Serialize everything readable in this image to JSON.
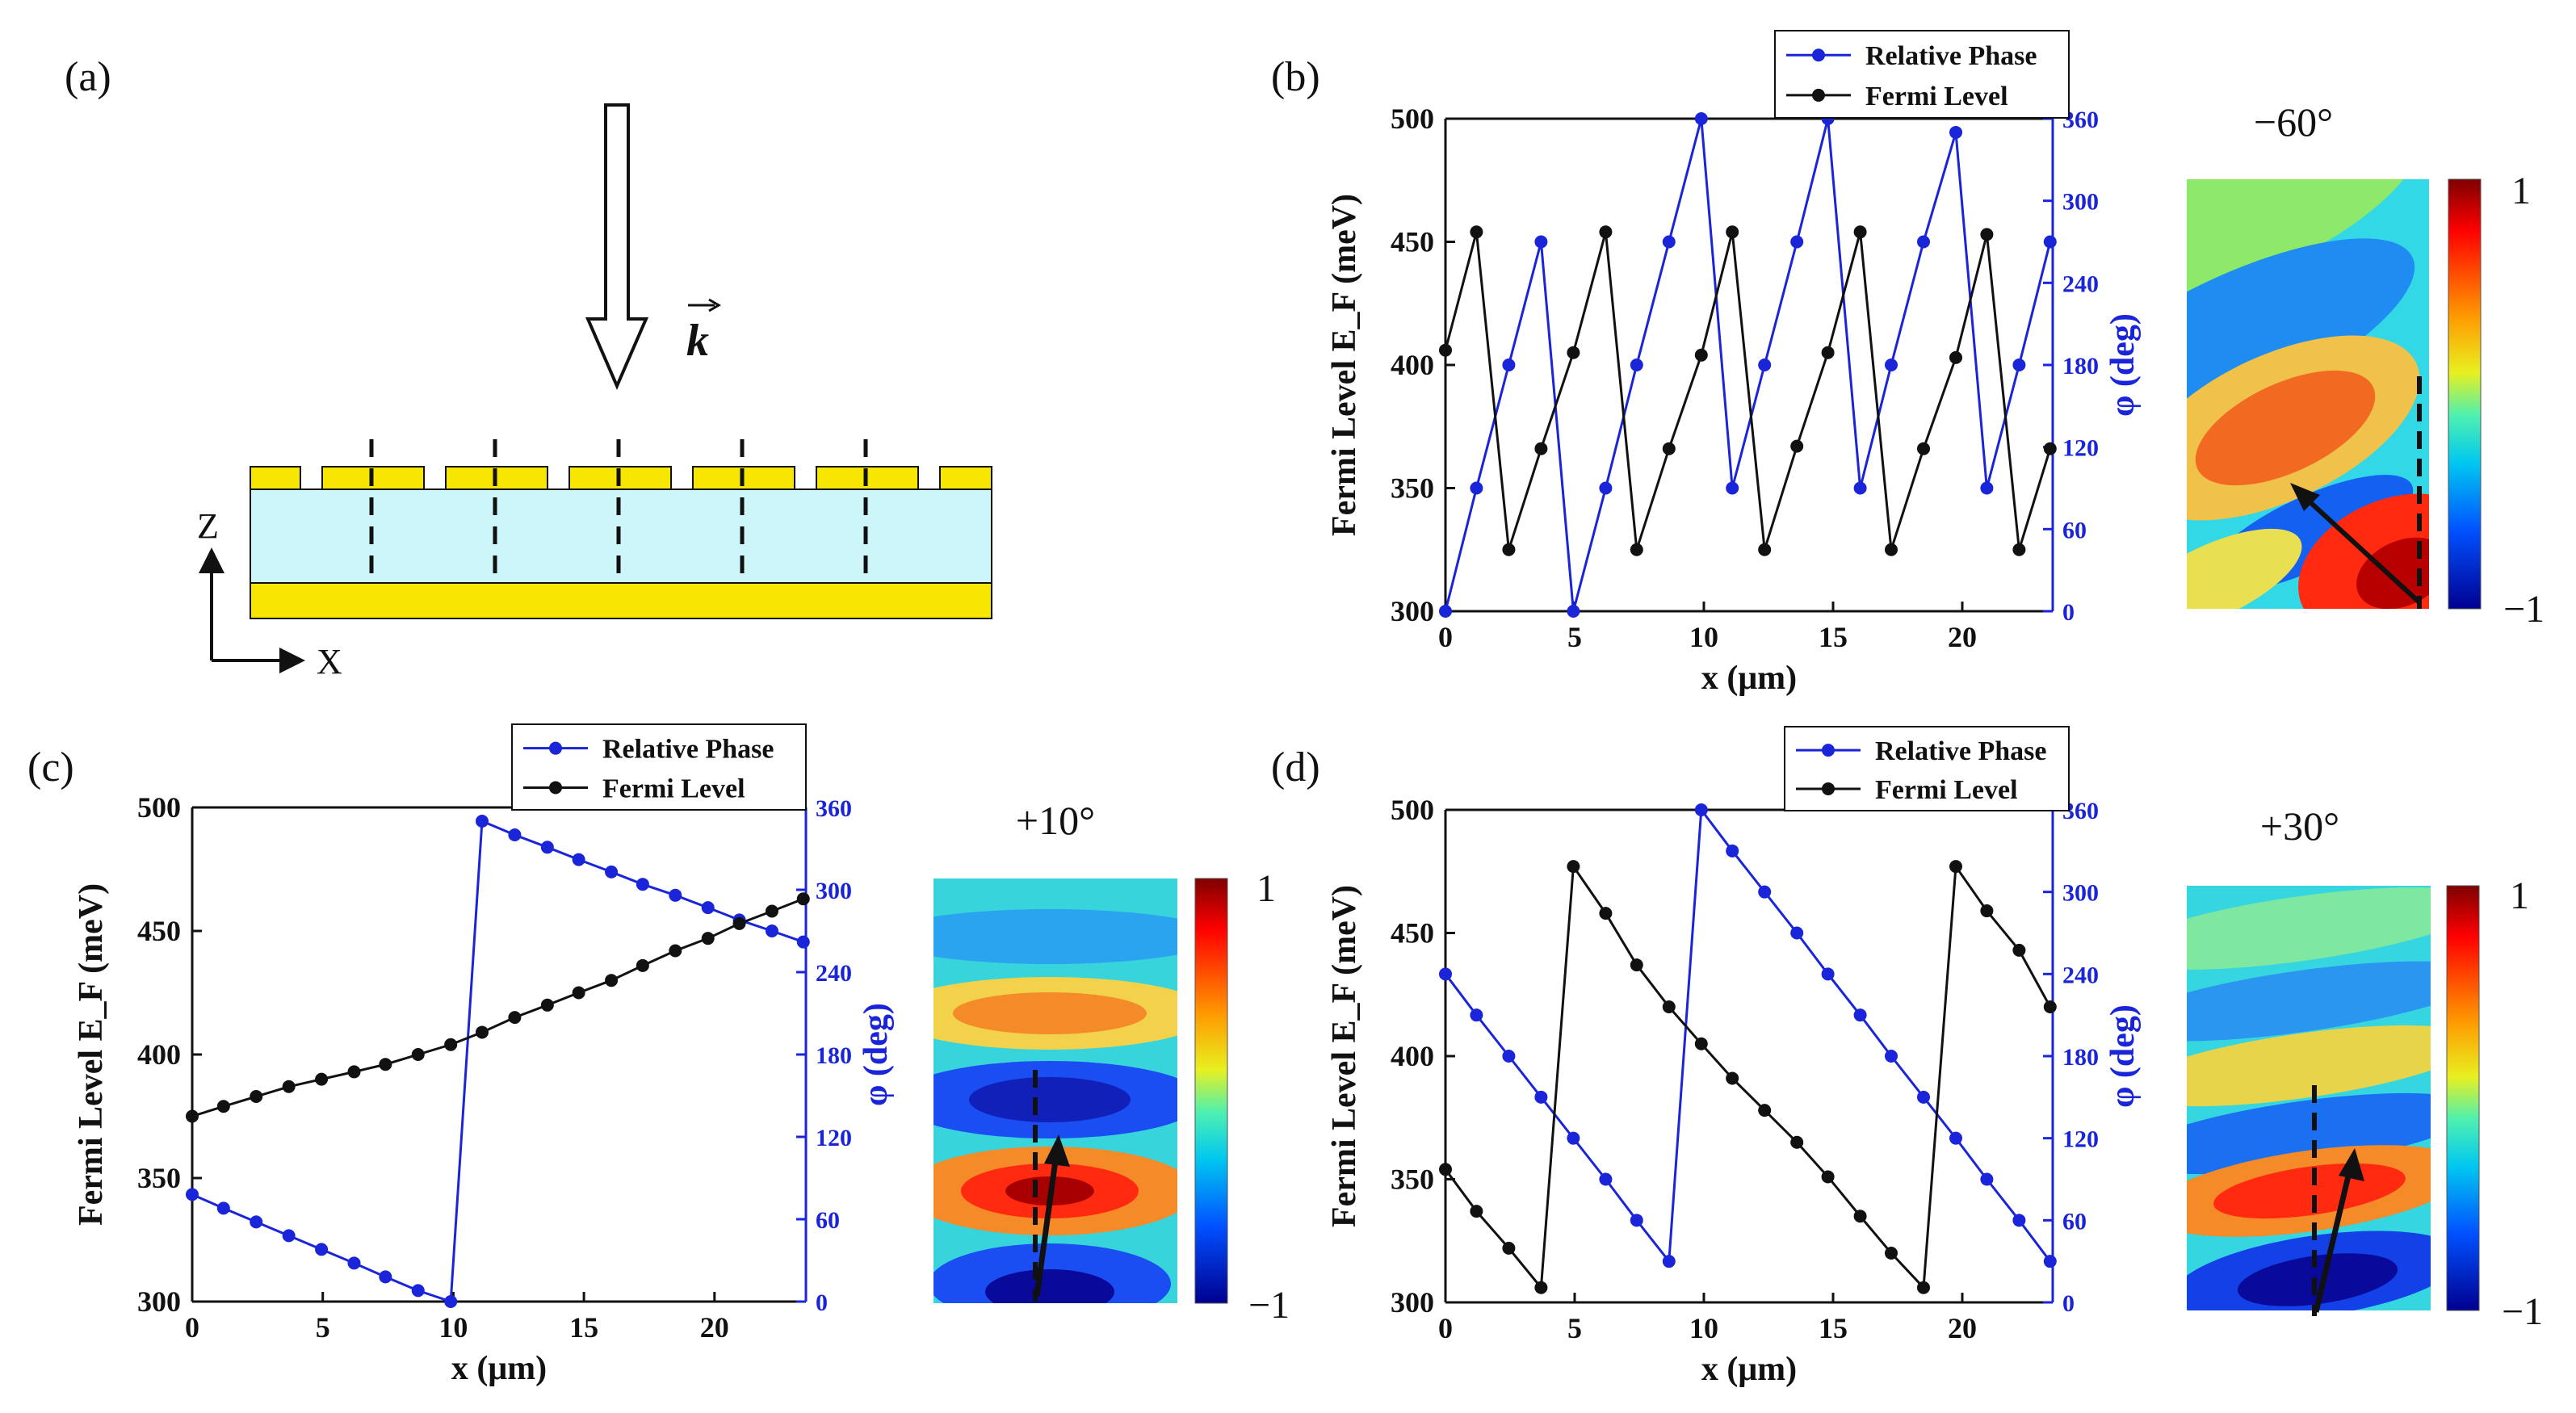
{
  "figure": {
    "panel_labels": [
      "(a)",
      "(b)",
      "(c)",
      "(d)"
    ],
    "schematic": {
      "wave_vector_label": "k",
      "axis_z": "Z",
      "axis_x": "X",
      "colors": {
        "metal": "#f7e600",
        "dielectric": "#cdf6fb"
      }
    }
  },
  "chart_data": [
    {
      "panel": "(b)",
      "type": "line",
      "xlabel": "x (μm)",
      "ylabel_left": "Fermi Level E_F (meV)",
      "ylabel_right": "φ (deg)",
      "xlim": [
        0,
        23.5
      ],
      "ylim_left": [
        300,
        500
      ],
      "ylim_right": [
        0,
        360
      ],
      "xticks": [
        "0",
        "5",
        "10",
        "15",
        "20"
      ],
      "yticks_left": [
        "300",
        "350",
        "400",
        "450",
        "500"
      ],
      "yticks_right": [
        "0",
        "60",
        "120",
        "180",
        "240",
        "300",
        "360"
      ],
      "legend": [
        "Relative Phase",
        "Fermi Level"
      ],
      "series": [
        {
          "name": "Relative Phase",
          "axis": "right",
          "color": "#1a24d8",
          "x": [
            0,
            1.2,
            2.45,
            3.7,
            4.95,
            6.2,
            7.4,
            8.65,
            9.9,
            11.1,
            12.35,
            13.6,
            14.8,
            16.05,
            17.25,
            18.5,
            19.75,
            20.95,
            22.2,
            23.4
          ],
          "y": [
            0,
            90,
            180,
            270,
            0,
            90,
            180,
            270,
            360,
            90,
            180,
            270,
            360,
            90,
            180,
            270,
            350,
            90,
            180,
            270
          ]
        },
        {
          "name": "Fermi Level",
          "axis": "left",
          "color": "#111111",
          "x": [
            0,
            1.2,
            2.45,
            3.7,
            4.95,
            6.2,
            7.4,
            8.65,
            9.9,
            11.1,
            12.35,
            13.6,
            14.8,
            16.05,
            17.25,
            18.5,
            19.75,
            20.95,
            22.2,
            23.4
          ],
          "y": [
            406,
            454,
            325,
            366,
            405,
            454,
            325,
            366,
            404,
            454,
            325,
            367,
            405,
            454,
            325,
            366,
            403,
            453,
            325,
            366
          ]
        }
      ],
      "field_map": {
        "angle_label": "−60°",
        "colorbar_ticks": [
          "1",
          "−1"
        ]
      }
    },
    {
      "panel": "(c)",
      "type": "line",
      "xlabel": "x (μm)",
      "ylabel_left": "Fermi Level E_F (meV)",
      "ylabel_right": "φ (deg)",
      "xlim": [
        0,
        23.5
      ],
      "ylim_left": [
        300,
        500
      ],
      "ylim_right": [
        0,
        360
      ],
      "xticks": [
        "0",
        "5",
        "10",
        "15",
        "20"
      ],
      "yticks_left": [
        "300",
        "350",
        "400",
        "450",
        "500"
      ],
      "yticks_right": [
        "0",
        "60",
        "120",
        "180",
        "240",
        "300",
        "360"
      ],
      "legend": [
        "Relative Phase",
        "Fermi Level"
      ],
      "series": [
        {
          "name": "Relative Phase",
          "axis": "right",
          "color": "#1a24d8",
          "x": [
            0,
            1.2,
            2.45,
            3.7,
            4.95,
            6.2,
            7.4,
            8.65,
            9.9,
            11.1,
            12.35,
            13.6,
            14.8,
            16.05,
            17.25,
            18.5,
            19.75,
            20.95,
            22.2,
            23.4
          ],
          "y": [
            78,
            68,
            58,
            48,
            38,
            28,
            18,
            8,
            0,
            350,
            340,
            331,
            322,
            313,
            304,
            296,
            287,
            278,
            270,
            262
          ]
        },
        {
          "name": "Fermi Level",
          "axis": "left",
          "color": "#111111",
          "x": [
            0,
            1.2,
            2.45,
            3.7,
            4.95,
            6.2,
            7.4,
            8.65,
            9.9,
            11.1,
            12.35,
            13.6,
            14.8,
            16.05,
            17.25,
            18.5,
            19.75,
            20.95,
            22.2,
            23.4
          ],
          "y": [
            375,
            379,
            383,
            387,
            390,
            393,
            396,
            400,
            404,
            409,
            415,
            420,
            425,
            430,
            436,
            442,
            447,
            453,
            458,
            463
          ]
        }
      ],
      "field_map": {
        "angle_label": "+10°",
        "colorbar_ticks": [
          "1",
          "−1"
        ]
      }
    },
    {
      "panel": "(d)",
      "type": "line",
      "xlabel": "x (μm)",
      "ylabel_left": "Fermi Level E_F (meV)",
      "ylabel_right": "φ (deg)",
      "xlim": [
        0,
        23.5
      ],
      "ylim_left": [
        300,
        500
      ],
      "ylim_right": [
        0,
        360
      ],
      "xticks": [
        "0",
        "5",
        "10",
        "15",
        "20"
      ],
      "yticks_left": [
        "300",
        "350",
        "400",
        "450",
        "500"
      ],
      "yticks_right": [
        "0",
        "60",
        "120",
        "180",
        "240",
        "300",
        "360"
      ],
      "legend": [
        "Relative Phase",
        "Fermi Level"
      ],
      "series": [
        {
          "name": "Relative Phase",
          "axis": "right",
          "color": "#1a24d8",
          "x": [
            0,
            1.2,
            2.45,
            3.7,
            4.95,
            6.2,
            7.4,
            8.65,
            9.9,
            11.1,
            12.35,
            13.6,
            14.8,
            16.05,
            17.25,
            18.5,
            19.75,
            20.95,
            22.2,
            23.4
          ],
          "y": [
            240,
            210,
            180,
            150,
            120,
            90,
            60,
            30,
            360,
            330,
            300,
            270,
            240,
            210,
            180,
            150,
            120,
            90,
            60,
            30
          ]
        },
        {
          "name": "Fermi Level",
          "axis": "left",
          "color": "#111111",
          "x": [
            0,
            1.2,
            2.45,
            3.7,
            4.95,
            6.2,
            7.4,
            8.65,
            9.9,
            11.1,
            12.35,
            13.6,
            14.8,
            16.05,
            17.25,
            18.5,
            19.75,
            20.95,
            22.2,
            23.4
          ],
          "y": [
            354,
            337,
            322,
            306,
            477,
            458,
            437,
            420,
            405,
            391,
            378,
            365,
            351,
            335,
            320,
            306,
            477,
            459,
            443,
            420
          ]
        }
      ],
      "field_map": {
        "angle_label": "+30°",
        "colorbar_ticks": [
          "1",
          "−1"
        ]
      }
    }
  ]
}
